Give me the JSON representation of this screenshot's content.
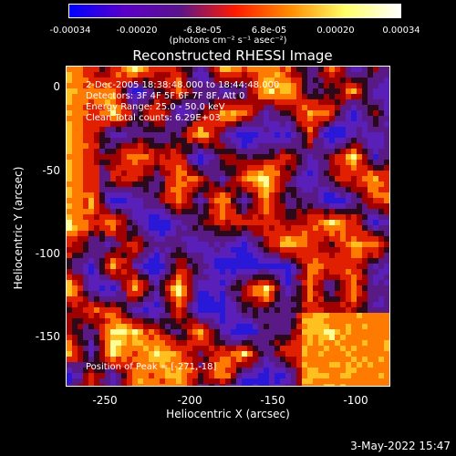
{
  "colorbar": {
    "tick_labels": [
      "-0.00034",
      "-0.00020",
      "-6.8e-05",
      "6.8e-05",
      "0.00020",
      "0.00034"
    ],
    "units": "(photons cm⁻² s⁻¹ asec⁻²)",
    "colors": [
      "#0000ff",
      "#5a00c8",
      "#5a148c",
      "#ff1a00",
      "#ff8c00",
      "#ffff66",
      "#ffffff"
    ]
  },
  "title": "Reconstructed RHESSI Image",
  "annotations": {
    "time": "2-Dec-2005 18:38:48.000 to 18:44:48.000",
    "detectors": "Detectors: 3F 4F 5F 6F 7F 8F, Att 0",
    "energy": "Energy Range: 25.0 - 50.0 keV",
    "method": "Clean     Total counts: 6.29E+03",
    "peak": "Position of Peak = [-271,-18]"
  },
  "axes": {
    "xlabel": "Heliocentric X (arcsec)",
    "ylabel": "Heliocentric Y (arcsec)",
    "xticks": [
      "-250",
      "-200",
      "-150",
      "-100"
    ],
    "yticks": [
      "0",
      "-50",
      "-100",
      "-150"
    ]
  },
  "timestamp": "3-May-2022 15:47"
}
